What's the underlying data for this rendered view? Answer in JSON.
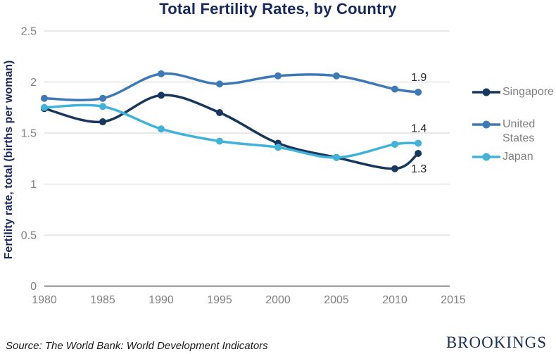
{
  "chart_data": {
    "type": "line",
    "title": "Total Fertility Rates, by Country",
    "ylabel": "Fertility  rate, total (births per woman)",
    "xlabel": "",
    "x": [
      1980,
      1985,
      1990,
      1995,
      2000,
      2005,
      2010,
      2012
    ],
    "xlim": [
      1980,
      2015
    ],
    "ylim": [
      0,
      2.5
    ],
    "xticks": {
      "values": [
        1980,
        1985,
        1990,
        1995,
        2000,
        2005,
        2010,
        2015
      ],
      "labels": [
        "1980",
        "1985",
        "1990",
        "1995",
        "2000",
        "2005",
        "2010",
        "2015"
      ]
    },
    "yticks": {
      "values": [
        0,
        0.5,
        1,
        1.5,
        2,
        2.5
      ],
      "labels": [
        "0",
        "0.5",
        "1",
        "1.5",
        "2",
        "2.5"
      ]
    },
    "grid": "horizontal-only",
    "legend_position": "right",
    "line_style": "smooth-with-round-markers",
    "series": [
      {
        "name": "Singapore",
        "color": "#17375E",
        "values": [
          1.74,
          1.61,
          1.87,
          1.7,
          1.4,
          1.26,
          1.15,
          1.3
        ],
        "end_label": "1.3",
        "end_label_position": "below"
      },
      {
        "name": "United States",
        "color": "#3E79B7",
        "values": [
          1.84,
          1.84,
          2.08,
          1.98,
          2.06,
          2.06,
          1.93,
          1.9
        ],
        "end_label": "1.9",
        "end_label_position": "above"
      },
      {
        "name": "Japan",
        "color": "#41B2D8",
        "values": [
          1.75,
          1.76,
          1.54,
          1.42,
          1.36,
          1.26,
          1.39,
          1.4
        ],
        "end_label": "1.4",
        "end_label_position": "above"
      }
    ],
    "colors": {
      "title": "#182A60",
      "axis_title": "#182A60",
      "tick_label": "#808080",
      "legend_text": "#808080",
      "gridline": "#D3D3D3",
      "axis_line": "#595959",
      "data_label": "#262626"
    }
  },
  "footer": {
    "source": "Source: The World Bank: World Development Indicators",
    "brand": "BROOKINGS"
  }
}
